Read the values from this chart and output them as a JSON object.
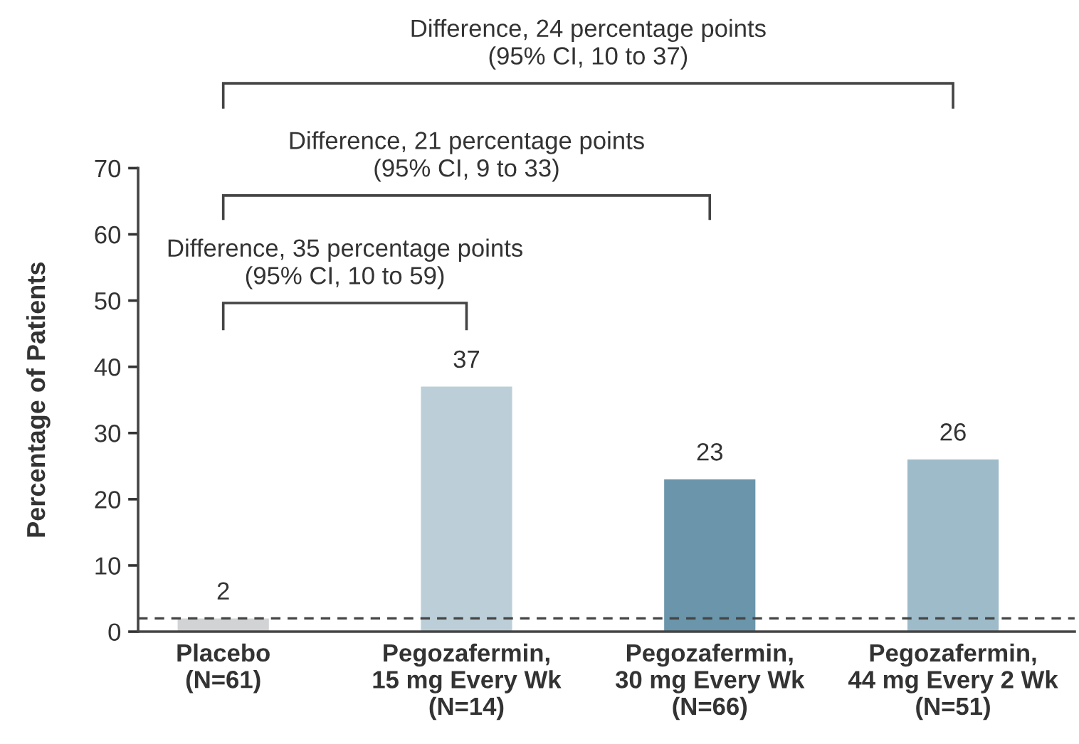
{
  "chart_data": {
    "type": "bar",
    "categories": [
      "Placebo\n(N=61)",
      "Pegozafermin,\n15 mg Every Wk\n(N=14)",
      "Pegozafermin,\n30 mg Every Wk\n(N=66)",
      "Pegozafermin,\n44 mg Every 2 Wk\n(N=51)"
    ],
    "values": [
      2,
      37,
      23,
      26
    ],
    "colors": [
      "#d2d3d4",
      "#bccfd8",
      "#6a95aa",
      "#9ebbca"
    ],
    "ylabel": "Percentage of Patients",
    "ylim": [
      0,
      70
    ],
    "yticks": [
      0,
      10,
      20,
      30,
      40,
      50,
      60,
      70
    ],
    "data_labels": true,
    "grid": false,
    "ref_lines": [
      {
        "axis": "y",
        "value": 2,
        "color": "#444444",
        "line_style": "dashed"
      }
    ],
    "annotations": [
      "Difference, 24 percentage points\n(95% CI, 10 to 37)",
      "Difference, 21 percentage points\n(95% CI, 9 to 33)",
      "Difference, 35 percentage points\n(95% CI, 10 to 59)"
    ]
  }
}
